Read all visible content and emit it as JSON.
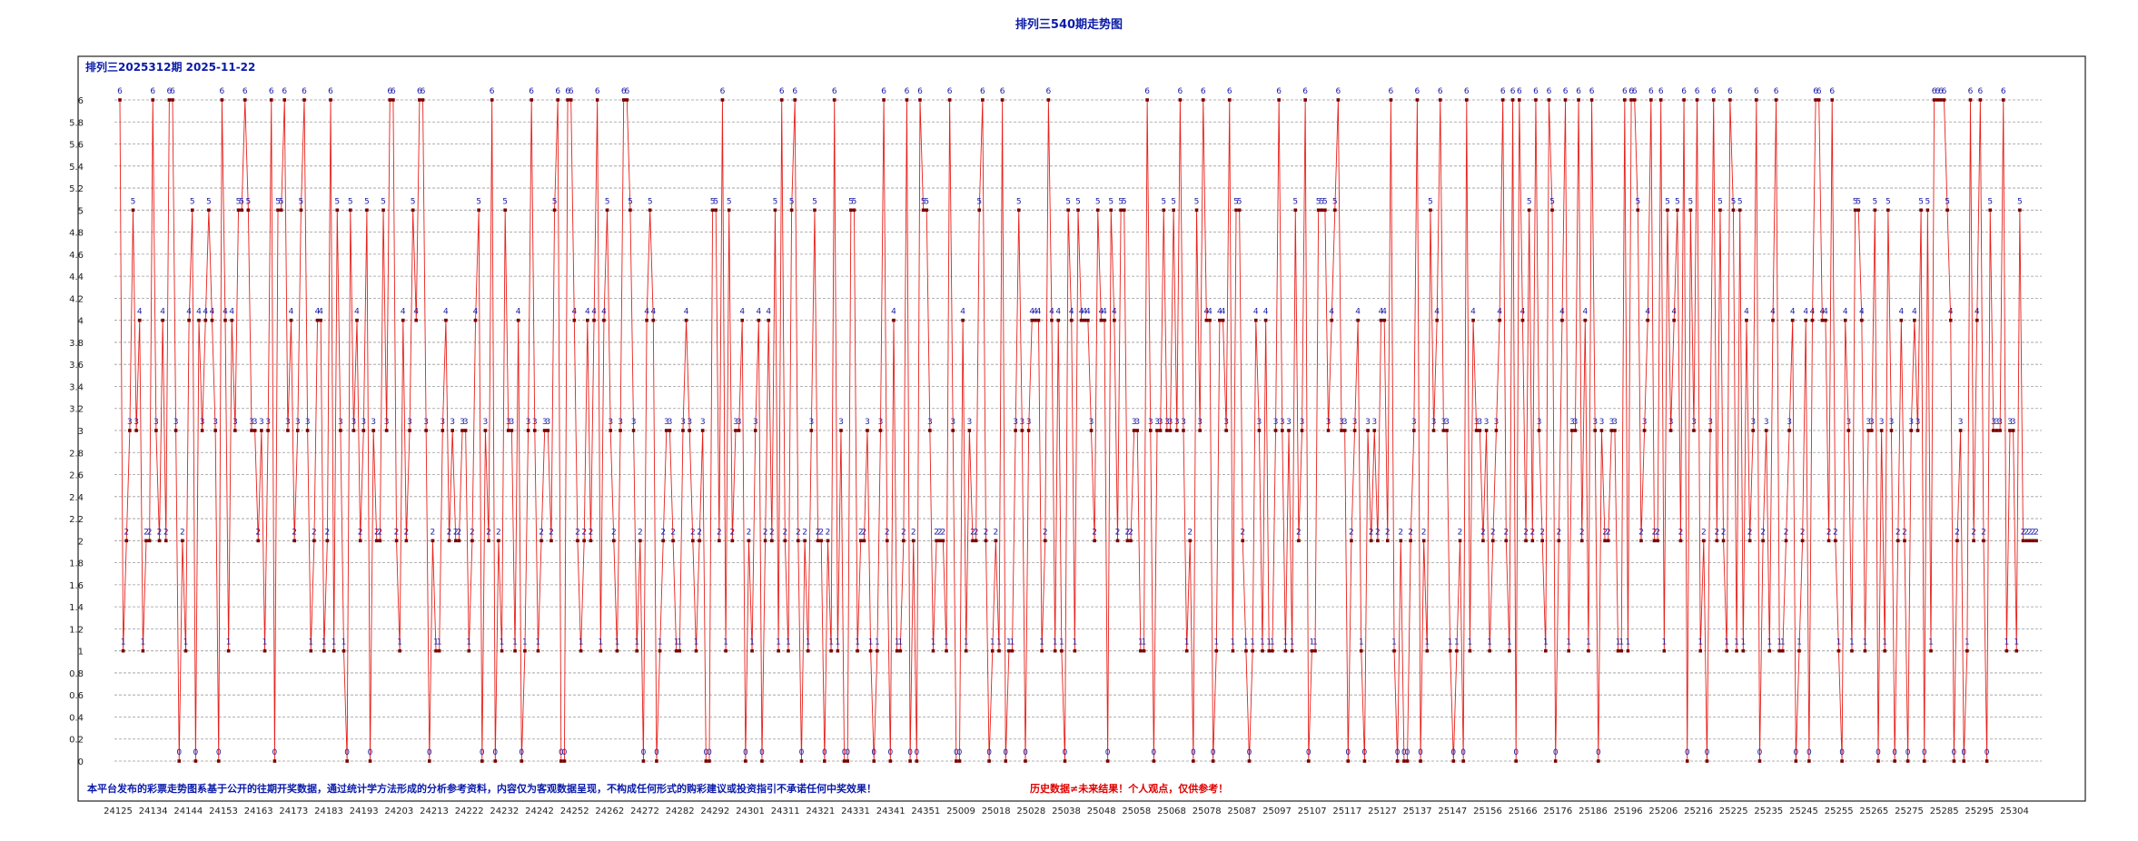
{
  "page": {
    "title": "排列三540期走势图"
  },
  "chart_data": {
    "type": "line",
    "header": "排列三2025312期  2025-11-22",
    "notice": "本平台发布的彩票走势图系基于公开的往期开奖数据，通过统计学方法形成的分析参考资料，内容仅为客观数据呈现，不构成任何形式的购彩建议或投资指引不承诺任何中奖效果！",
    "warning": "历史数据≠未来结果！个人观点，仅供参考！",
    "ylim": [
      0,
      6
    ],
    "yticks": [
      "0",
      "0.2",
      "0.4",
      "0.6",
      "0.8",
      "1",
      "1.2",
      "1.4",
      "1.6",
      "1.8",
      "2",
      "2.2",
      "2.4",
      "2.6",
      "2.8",
      "3",
      "3.2",
      "3.4",
      "3.6",
      "3.8",
      "4",
      "4.2",
      "4.4",
      "4.6",
      "4.8",
      "5",
      "5.2",
      "5.4",
      "5.6",
      "5.8",
      "6"
    ],
    "grid": true,
    "legend": "none",
    "colors": {
      "line": "#e8201a",
      "marker": "#7a0000",
      "label": "#1a1aaa",
      "frame": "#222222",
      "grid": "#9a9a9a"
    },
    "x_tick_labels": [
      "24125",
      "24134",
      "24144",
      "24153",
      "24163",
      "24173",
      "24183",
      "24193",
      "24203",
      "24213",
      "24222",
      "24232",
      "24242",
      "24252",
      "24262",
      "24272",
      "24282",
      "24292",
      "24301",
      "24311",
      "24321",
      "24331",
      "24341",
      "24351",
      "25009",
      "25018",
      "25028",
      "25038",
      "25048",
      "25058",
      "25068",
      "25078",
      "25087",
      "25097",
      "25107",
      "25117",
      "25127",
      "25137",
      "25147",
      "25156",
      "25166",
      "25176",
      "25186",
      "25196",
      "25206",
      "25216",
      "25225",
      "25235",
      "25245",
      "25255",
      "25265",
      "25275",
      "25285",
      "25295",
      "25304"
    ],
    "values": [
      6,
      1,
      2,
      3,
      5,
      3,
      4,
      1,
      2,
      2,
      6,
      3,
      2,
      4,
      2,
      6,
      6,
      3,
      0,
      2,
      1,
      4,
      5,
      0,
      4,
      3,
      4,
      5,
      4,
      3,
      0,
      6,
      4,
      1,
      4,
      3,
      5,
      5,
      6,
      5,
      3,
      3,
      2,
      3,
      1,
      3,
      6,
      0,
      5,
      5,
      6,
      3,
      4,
      2,
      3,
      5,
      6,
      3,
      1,
      2,
      4,
      4,
      1,
      2,
      6,
      1,
      5,
      3,
      1,
      0,
      5,
      3,
      4,
      2,
      3,
      5,
      0,
      3,
      2,
      2,
      5,
      3,
      6,
      6,
      2,
      1,
      4,
      2,
      3,
      5,
      4,
      6,
      6,
      3,
      0,
      2,
      1,
      1,
      3,
      4,
      2,
      3,
      2,
      2,
      3,
      3,
      1,
      2,
      4,
      5,
      0,
      3,
      2,
      6,
      0,
      2,
      1,
      5,
      3,
      3,
      1,
      4,
      0,
      1,
      3,
      6,
      3,
      1,
      2,
      3,
      3,
      2,
      5,
      6,
      0,
      0,
      6,
      6,
      4,
      2,
      1,
      2,
      4,
      2,
      4,
      6,
      1,
      4,
      5,
      3,
      2,
      1,
      3,
      6,
      6,
      5,
      3,
      1,
      2,
      0,
      4,
      5,
      4,
      0,
      1,
      2,
      3,
      3,
      2,
      1,
      1,
      3,
      4,
      3,
      2,
      1,
      2,
      3,
      0,
      0,
      5,
      5,
      2,
      6,
      1,
      5,
      2,
      3,
      3,
      4,
      0,
      2,
      1,
      3,
      4,
      0,
      2,
      4,
      2,
      5,
      1,
      6,
      2,
      1,
      5,
      6,
      2,
      0,
      2,
      1,
      3,
      5,
      2,
      2,
      0,
      2,
      1,
      6,
      1,
      3,
      0,
      0,
      5,
      5,
      1,
      2,
      2,
      3,
      1,
      0,
      1,
      3,
      6,
      2,
      0,
      4,
      1,
      1,
      2,
      6,
      0,
      2,
      0,
      6,
      5,
      5,
      3,
      1,
      2,
      2,
      2,
      1,
      6,
      3,
      0,
      0,
      4,
      1,
      3,
      2,
      2,
      5,
      6,
      2,
      0,
      1,
      2,
      1,
      6,
      0,
      1,
      1,
      3,
      5,
      3,
      0,
      3,
      4,
      4,
      4,
      1,
      2,
      6,
      4,
      1,
      4,
      1,
      0,
      5,
      4,
      1,
      5,
      4,
      4,
      4,
      3,
      2,
      5,
      4,
      4,
      0,
      5,
      4,
      2,
      5,
      5,
      2,
      2,
      3,
      3,
      1,
      1,
      6,
      3,
      0,
      3,
      3,
      5,
      3,
      3,
      5,
      3,
      6,
      3,
      1,
      2,
      0,
      5,
      3,
      6,
      4,
      4,
      0,
      1,
      4,
      4,
      3,
      6,
      1,
      5,
      5,
      2,
      1,
      0,
      1,
      4,
      3,
      1,
      4,
      1,
      1,
      3,
      6,
      3,
      1,
      3,
      1,
      5,
      2,
      3,
      6,
      0,
      1,
      1,
      5,
      5,
      5,
      3,
      4,
      5,
      6,
      3,
      3,
      0,
      2,
      3,
      4,
      1,
      0,
      3,
      2,
      3,
      2,
      4,
      4,
      2,
      6,
      1,
      0,
      2,
      0,
      0,
      2,
      3,
      6,
      0,
      2,
      1,
      5,
      3,
      4,
      6,
      3,
      3,
      1,
      0,
      1,
      2,
      0,
      6,
      1,
      4,
      3,
      3,
      2,
      3,
      1,
      2,
      3,
      4,
      6,
      2,
      1,
      6,
      0,
      6,
      4,
      2,
      5,
      2,
      6,
      3,
      2,
      1,
      6,
      5,
      0,
      2,
      4,
      6,
      1,
      3,
      3,
      6,
      2,
      4,
      1,
      6,
      3,
      0,
      3,
      2,
      2,
      3,
      3,
      1,
      1,
      6,
      1,
      6,
      6,
      5,
      2,
      3,
      4,
      6,
      2,
      2,
      6,
      1,
      5,
      3,
      4,
      5,
      2,
      6,
      0,
      5,
      3,
      6,
      1,
      2,
      0,
      3,
      6,
      2,
      5,
      2,
      1,
      6,
      5,
      1,
      5,
      1,
      4,
      2,
      3,
      6,
      0,
      2,
      3,
      1,
      4,
      6,
      1,
      1,
      2,
      3,
      4,
      0,
      1,
      2,
      4,
      0,
      4,
      6,
      6,
      4,
      4,
      2,
      6,
      2,
      1,
      0,
      4,
      3,
      1,
      5,
      5,
      4,
      1,
      3,
      3,
      5,
      0,
      3,
      1,
      5,
      3,
      0,
      2,
      4,
      2,
      0,
      3,
      4,
      3,
      5,
      0,
      5,
      1,
      6,
      6,
      6,
      6,
      5,
      4,
      0,
      2,
      3,
      0,
      1,
      6,
      2,
      4,
      6,
      2,
      0,
      5,
      3,
      3,
      3,
      6,
      1,
      3,
      3,
      1,
      5,
      2,
      2,
      2,
      2,
      2
    ]
  }
}
